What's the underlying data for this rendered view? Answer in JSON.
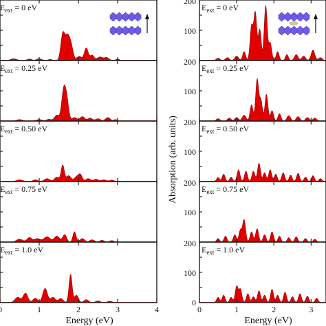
{
  "chart_data": [
    {
      "type": "area",
      "side": "left",
      "title": "",
      "xlabel": "Energy (eV)",
      "ylabel": "",
      "xlim": [
        0,
        4
      ],
      "xticks": [
        "0",
        "1",
        "2",
        "3",
        "4"
      ],
      "ylim": [
        0,
        200
      ],
      "grid": false,
      "inset": "E_ext",
      "panels": [
        {
          "label": "E_ext = 0 eV",
          "peaks": [
            [
              0.35,
              0.08,
              6
            ],
            [
              0.75,
              0.06,
              5
            ],
            [
              1.0,
              0.07,
              6
            ],
            [
              1.28,
              0.05,
              4
            ],
            [
              1.6,
              0.05,
              85
            ],
            [
              1.72,
              0.06,
              80
            ],
            [
              1.82,
              0.05,
              40
            ],
            [
              2.02,
              0.06,
              14
            ],
            [
              2.2,
              0.05,
              42
            ],
            [
              2.35,
              0.05,
              18
            ],
            [
              2.55,
              0.07,
              12
            ],
            [
              2.72,
              0.06,
              10
            ],
            [
              3.0,
              0.05,
              5
            ]
          ]
        },
        {
          "label": "E_ext = 0.25 eV",
          "peaks": [
            [
              0.5,
              0.08,
              5
            ],
            [
              1.0,
              0.08,
              5
            ],
            [
              1.25,
              0.06,
              6
            ],
            [
              1.45,
              0.06,
              20
            ],
            [
              1.62,
              0.05,
              95
            ],
            [
              1.7,
              0.05,
              70
            ],
            [
              1.9,
              0.06,
              12
            ],
            [
              2.1,
              0.06,
              15
            ],
            [
              2.3,
              0.06,
              10
            ],
            [
              2.5,
              0.06,
              8
            ],
            [
              2.75,
              0.06,
              12
            ],
            [
              2.95,
              0.05,
              5
            ]
          ]
        },
        {
          "label": "E_ext = 0.50 eV",
          "peaks": [
            [
              0.5,
              0.08,
              6
            ],
            [
              0.9,
              0.06,
              6
            ],
            [
              1.2,
              0.07,
              10
            ],
            [
              1.45,
              0.06,
              15
            ],
            [
              1.6,
              0.04,
              55
            ],
            [
              1.75,
              0.06,
              20
            ],
            [
              1.95,
              0.06,
              15
            ],
            [
              2.05,
              0.05,
              22
            ],
            [
              2.25,
              0.06,
              10
            ],
            [
              2.45,
              0.06,
              8
            ],
            [
              2.65,
              0.06,
              6
            ],
            [
              2.85,
              0.06,
              5
            ]
          ]
        },
        {
          "label": "E_ext = 0.75 eV",
          "peaks": [
            [
              0.5,
              0.08,
              10
            ],
            [
              0.75,
              0.06,
              15
            ],
            [
              0.95,
              0.08,
              12
            ],
            [
              1.2,
              0.08,
              18
            ],
            [
              1.45,
              0.07,
              20
            ],
            [
              1.65,
              0.05,
              25
            ],
            [
              1.9,
              0.04,
              35
            ],
            [
              2.1,
              0.06,
              12
            ],
            [
              2.35,
              0.06,
              8
            ],
            [
              2.6,
              0.06,
              6
            ],
            [
              2.85,
              0.06,
              5
            ]
          ]
        },
        {
          "label": "E_ext = 1.0 eV",
          "peaks": [
            [
              0.45,
              0.07,
              18
            ],
            [
              0.65,
              0.06,
              32
            ],
            [
              0.9,
              0.06,
              15
            ],
            [
              1.15,
              0.06,
              48
            ],
            [
              1.35,
              0.06,
              18
            ],
            [
              1.55,
              0.06,
              14
            ],
            [
              1.8,
              0.04,
              95
            ],
            [
              1.95,
              0.05,
              25
            ],
            [
              2.2,
              0.06,
              10
            ],
            [
              2.5,
              0.06,
              6
            ],
            [
              2.8,
              0.06,
              5
            ]
          ]
        }
      ]
    },
    {
      "type": "area",
      "side": "right",
      "title": "",
      "xlabel": "Energy (eV)",
      "ylabel": "Absorption (arb. units)",
      "xlim": [
        0,
        3.4
      ],
      "xticks": [
        "0",
        "1",
        "2",
        "3"
      ],
      "ylim": [
        0,
        200
      ],
      "yticks": [
        "100",
        "200"
      ],
      "yticks_bottom": [
        "0",
        "100",
        "200"
      ],
      "grid": false,
      "inset": "E_ext",
      "panels": [
        {
          "label": "E_ext = 0 eV",
          "peaks": [
            [
              0.5,
              0.05,
              8
            ],
            [
              0.75,
              0.05,
              10
            ],
            [
              1.0,
              0.05,
              15
            ],
            [
              1.2,
              0.04,
              30
            ],
            [
              1.4,
              0.04,
              115
            ],
            [
              1.5,
              0.04,
              160
            ],
            [
              1.62,
              0.04,
              105
            ],
            [
              1.78,
              0.04,
              185
            ],
            [
              1.9,
              0.04,
              60
            ],
            [
              2.1,
              0.04,
              30
            ],
            [
              2.35,
              0.04,
              20
            ],
            [
              2.6,
              0.05,
              20
            ],
            [
              2.8,
              0.05,
              15
            ],
            [
              3.05,
              0.05,
              35
            ],
            [
              3.25,
              0.05,
              10
            ]
          ]
        },
        {
          "label": "E_ext = 0.25 eV",
          "peaks": [
            [
              0.5,
              0.05,
              8
            ],
            [
              0.8,
              0.05,
              10
            ],
            [
              1.0,
              0.05,
              12
            ],
            [
              1.2,
              0.05,
              20
            ],
            [
              1.4,
              0.04,
              55
            ],
            [
              1.55,
              0.04,
              140
            ],
            [
              1.65,
              0.04,
              70
            ],
            [
              1.8,
              0.04,
              90
            ],
            [
              1.95,
              0.04,
              35
            ],
            [
              2.15,
              0.04,
              25
            ],
            [
              2.4,
              0.05,
              18
            ],
            [
              2.65,
              0.05,
              15
            ],
            [
              2.9,
              0.05,
              12
            ],
            [
              3.1,
              0.05,
              10
            ]
          ]
        },
        {
          "label": "E_ext = 0.50 eV",
          "peaks": [
            [
              0.5,
              0.04,
              14
            ],
            [
              0.65,
              0.04,
              25
            ],
            [
              0.85,
              0.04,
              15
            ],
            [
              1.05,
              0.04,
              40
            ],
            [
              1.25,
              0.04,
              35
            ],
            [
              1.45,
              0.04,
              35
            ],
            [
              1.6,
              0.04,
              62
            ],
            [
              1.75,
              0.04,
              30
            ],
            [
              1.9,
              0.04,
              40
            ],
            [
              2.05,
              0.04,
              25
            ],
            [
              2.25,
              0.04,
              30
            ],
            [
              2.45,
              0.04,
              22
            ],
            [
              2.65,
              0.04,
              28
            ],
            [
              2.85,
              0.04,
              15
            ],
            [
              3.05,
              0.04,
              20
            ],
            [
              3.25,
              0.04,
              10
            ]
          ]
        },
        {
          "label": "E_ext = 0.75 eV",
          "peaks": [
            [
              0.5,
              0.04,
              12
            ],
            [
              0.7,
              0.04,
              20
            ],
            [
              0.95,
              0.04,
              25
            ],
            [
              1.1,
              0.04,
              40
            ],
            [
              1.2,
              0.04,
              75
            ],
            [
              1.4,
              0.04,
              35
            ],
            [
              1.55,
              0.04,
              45
            ],
            [
              1.75,
              0.04,
              25
            ],
            [
              1.95,
              0.04,
              35
            ],
            [
              2.15,
              0.04,
              20
            ],
            [
              2.4,
              0.04,
              15
            ],
            [
              2.6,
              0.04,
              18
            ],
            [
              2.85,
              0.04,
              12
            ],
            [
              3.1,
              0.04,
              10
            ]
          ]
        },
        {
          "label": "E_ext = 1.0 eV",
          "peaks": [
            [
              0.5,
              0.04,
              18
            ],
            [
              0.65,
              0.04,
              25
            ],
            [
              0.85,
              0.04,
              18
            ],
            [
              1.0,
              0.04,
              55
            ],
            [
              1.1,
              0.04,
              45
            ],
            [
              1.3,
              0.04,
              30
            ],
            [
              1.45,
              0.04,
              20
            ],
            [
              1.6,
              0.04,
              40
            ],
            [
              1.75,
              0.04,
              25
            ],
            [
              1.95,
              0.04,
              45
            ],
            [
              2.1,
              0.04,
              25
            ],
            [
              2.3,
              0.04,
              35
            ],
            [
              2.5,
              0.04,
              20
            ],
            [
              2.7,
              0.04,
              30
            ],
            [
              2.9,
              0.04,
              22
            ],
            [
              3.15,
              0.04,
              15
            ]
          ]
        }
      ]
    }
  ]
}
